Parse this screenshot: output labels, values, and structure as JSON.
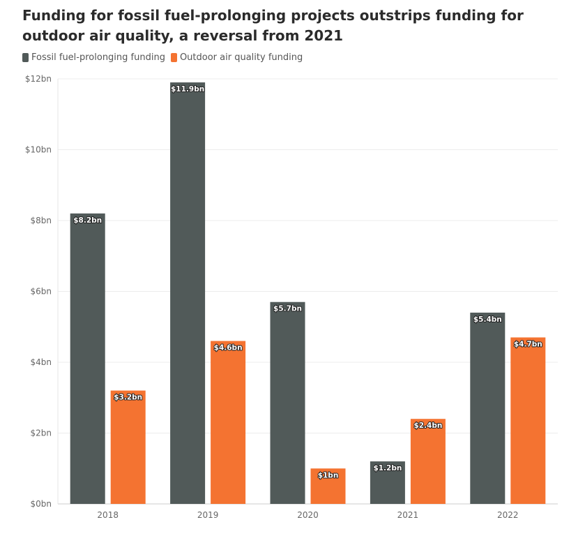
{
  "chart_data": {
    "type": "bar",
    "title": "Funding for fossil fuel-prolonging projects outstrips funding for outdoor air quality, a reversal from 2021",
    "categories": [
      "2018",
      "2019",
      "2020",
      "2021",
      "2022"
    ],
    "series": [
      {
        "name": "Fossil fuel-prolonging funding",
        "values": [
          8.2,
          11.9,
          5.7,
          1.2,
          5.4
        ],
        "labels": [
          "$8.2bn",
          "$11.9bn",
          "$5.7bn",
          "$1.2bn",
          "$5.4bn"
        ],
        "color": "#515a59"
      },
      {
        "name": "Outdoor air quality funding",
        "values": [
          3.2,
          4.6,
          1.0,
          2.4,
          4.7
        ],
        "labels": [
          "$3.2bn",
          "$4.6bn",
          "$1bn",
          "$2.4bn",
          "$4.7bn"
        ],
        "color": "#f47331"
      }
    ],
    "ylim": [
      0,
      12
    ],
    "yticks": [
      0,
      2,
      4,
      6,
      8,
      10,
      12
    ],
    "ytick_labels": [
      "$0bn",
      "$2bn",
      "$4bn",
      "$6bn",
      "$8bn",
      "$10bn",
      "$12bn"
    ],
    "xlabel": "",
    "ylabel": "",
    "grid": true,
    "legend": "top-left"
  }
}
